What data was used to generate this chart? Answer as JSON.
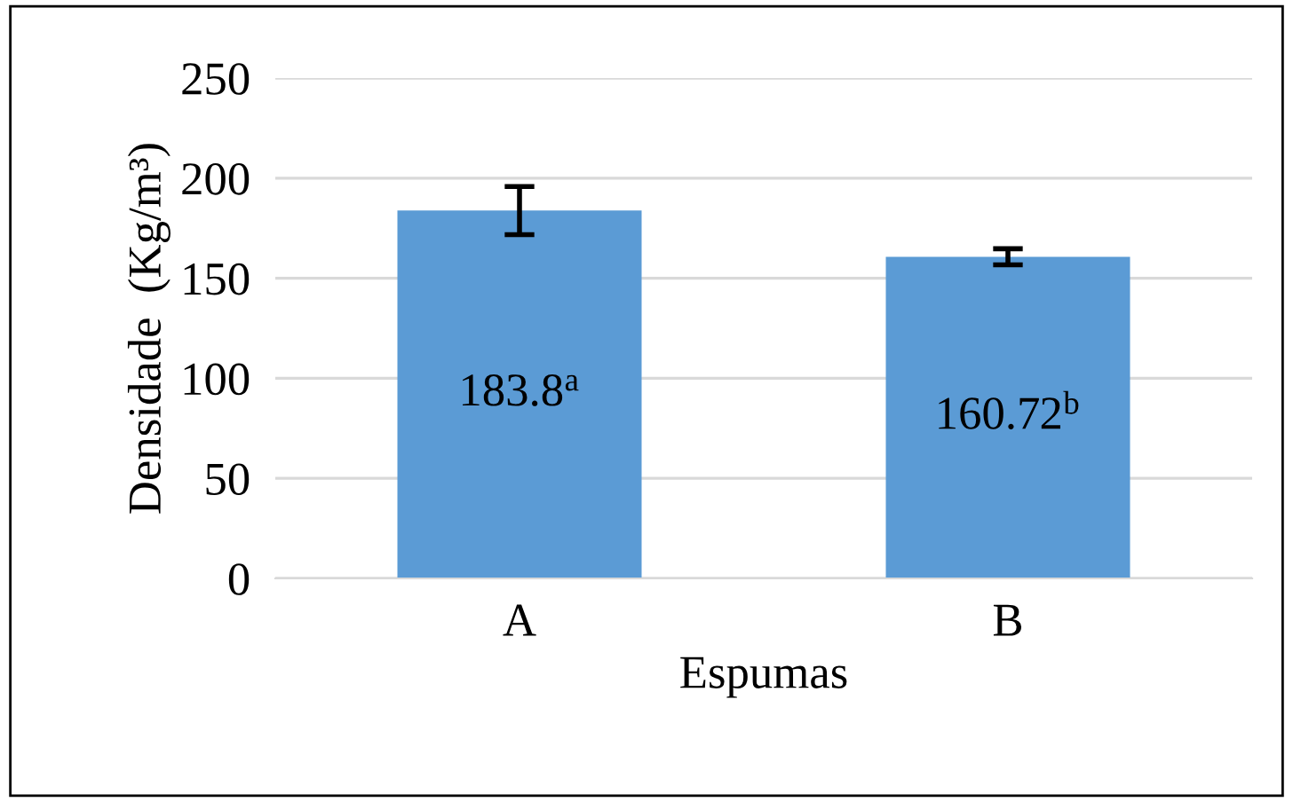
{
  "chart_data": {
    "type": "bar",
    "xlabel": "Espumas",
    "ylabel": "Densidade  (Kg/m³)",
    "categories": [
      "A",
      "B"
    ],
    "values": [
      183.8,
      160.72
    ],
    "errors": [
      12,
      4
    ],
    "value_labels": [
      "183.8$^{a}$",
      "160.72$^{b}$"
    ],
    "color": "#5b9bd5",
    "ylim": [
      0,
      250
    ],
    "yticks": [
      0,
      50,
      100,
      150,
      200,
      250
    ],
    "grid": "y",
    "legend": false
  }
}
